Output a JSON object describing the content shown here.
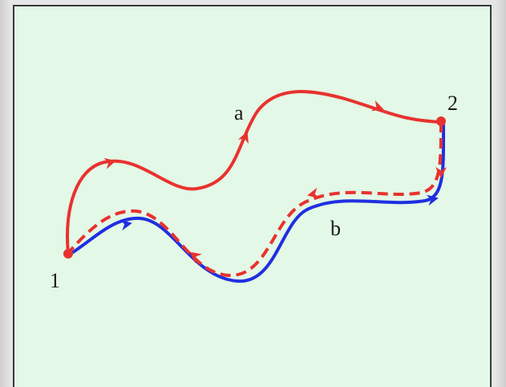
{
  "labels": {
    "path_a": "a",
    "path_b": "b",
    "point_1": "1",
    "point_2": "2"
  },
  "colors": {
    "background": "#e3f8e6",
    "path_a": "#e8322f",
    "path_b": "#1f2fe0",
    "return_path": "#e8322f",
    "point": "#e8322f"
  }
}
